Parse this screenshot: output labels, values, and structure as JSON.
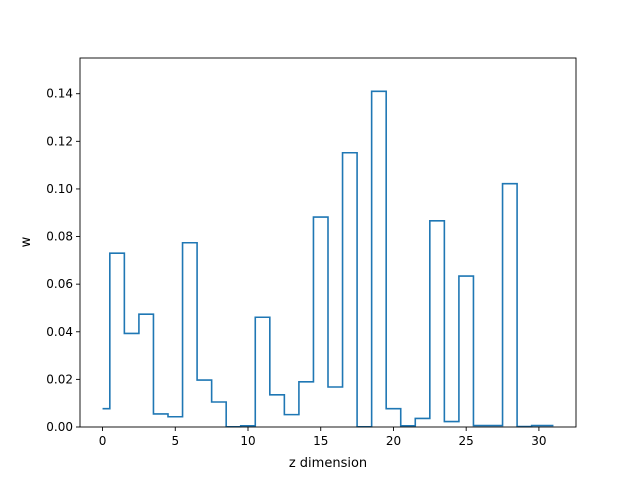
{
  "chart_data": {
    "type": "step",
    "title": "",
    "xlabel": "z dimension",
    "ylabel": "w",
    "xlim": [
      -1.55,
      32.55
    ],
    "ylim": [
      0.0,
      0.155
    ],
    "xticks": [
      0,
      5,
      10,
      15,
      20,
      25,
      30
    ],
    "yticks": [
      0.0,
      0.02,
      0.04,
      0.06,
      0.08,
      0.1,
      0.12,
      0.14
    ],
    "ytick_labels": [
      "0.00",
      "0.02",
      "0.04",
      "0.06",
      "0.08",
      "0.10",
      "0.12",
      "0.14"
    ],
    "step_where": "mid",
    "x": [
      0,
      1,
      2,
      3,
      4,
      5,
      6,
      7,
      8,
      9,
      10,
      11,
      12,
      13,
      14,
      15,
      16,
      17,
      18,
      19,
      20,
      21,
      22,
      23,
      24,
      25,
      26,
      27,
      28,
      29,
      30,
      31
    ],
    "y": [
      0.0077,
      0.073,
      0.0393,
      0.0474,
      0.0055,
      0.0043,
      0.0774,
      0.0197,
      0.0105,
      0.0001,
      0.0005,
      0.0461,
      0.0135,
      0.0052,
      0.019,
      0.0882,
      0.0168,
      0.1152,
      0.0001,
      0.141,
      0.0077,
      0.0005,
      0.0036,
      0.0866,
      0.0023,
      0.0634,
      0.0006,
      0.0006,
      0.1022,
      0.0002,
      0.0006,
      0.0006
    ],
    "line_color": "#1f77b4",
    "grid": false,
    "legend": "none"
  }
}
